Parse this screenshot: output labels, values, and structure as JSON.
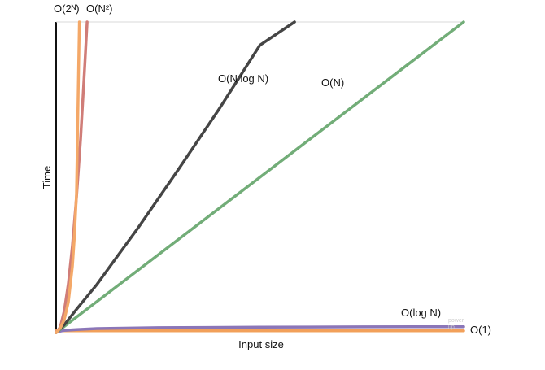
{
  "chart_data": {
    "type": "line",
    "xlabel": "Input size",
    "ylabel": "Time",
    "grid": false,
    "legend": "none",
    "x_range": [
      0,
      100
    ],
    "y_range": [
      0,
      100
    ],
    "series": [
      {
        "name": "O(1)",
        "color": "#f2a05a",
        "x": [
          0,
          1,
          100
        ],
        "y": [
          0.6,
          0.6,
          0.6
        ]
      },
      {
        "name": "O(log N)",
        "color": "#8b76b8",
        "x": [
          0,
          2,
          5,
          10,
          25,
          50,
          75,
          100
        ],
        "y": [
          0.2,
          0.7,
          1.0,
          1.3,
          1.6,
          1.75,
          1.85,
          1.9
        ]
      },
      {
        "name": "O(N)",
        "color": "#72ad78",
        "x": [
          0,
          100
        ],
        "y": [
          0,
          100
        ]
      },
      {
        "name": "O(N log N)",
        "color": "#454545",
        "x": [
          0,
          2,
          5,
          10,
          15,
          20,
          30,
          40,
          50,
          58.5
        ],
        "y": [
          0,
          2.5,
          7.5,
          15.5,
          24.5,
          33.5,
          52.5,
          72,
          92.5,
          100
        ]
      },
      {
        "name": "O(N²)",
        "color": "#d07d78",
        "x": [
          0,
          1,
          2,
          3,
          4,
          5,
          6,
          7,
          7.6
        ],
        "y": [
          0,
          1.7,
          7,
          15.7,
          28,
          43.5,
          62.5,
          85.5,
          100
        ]
      },
      {
        "name": "O(2ᴺ)",
        "color": "#f4a868",
        "x": [
          0,
          1,
          2,
          3,
          4,
          4.5,
          5,
          5.7
        ],
        "y": [
          0,
          1.4,
          4.2,
          9.8,
          21.3,
          31,
          44.5,
          100
        ]
      }
    ],
    "labels": {
      "o_2n": "O(2ᴺ)",
      "o_n2": "O(N²)",
      "o_nlogn": "O(N log N)",
      "o_n": "O(N)",
      "o_logn": "O(log N)",
      "o_1": "O(1)"
    },
    "watermark": [
      "power",
      "up"
    ]
  }
}
